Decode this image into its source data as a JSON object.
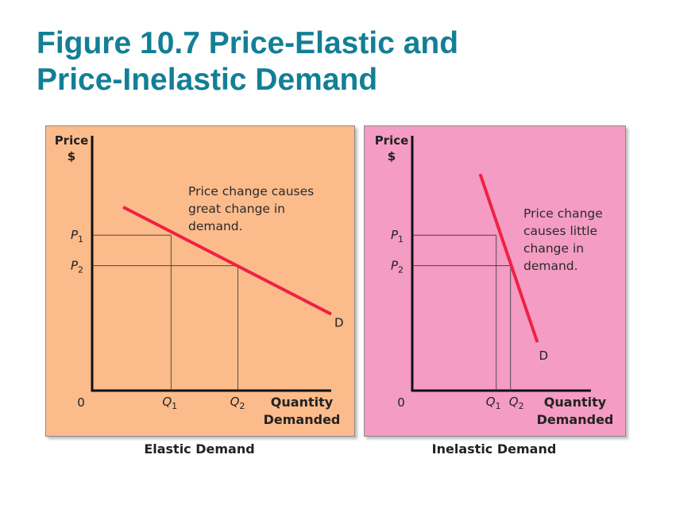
{
  "title": {
    "line1": "Figure 10.7 Price-Elastic and",
    "line2": "Price-Inelastic Demand"
  },
  "colors": {
    "title": "#127f96",
    "elastic_bg": "#fcbb8b",
    "inelastic_bg": "#f49cc3",
    "demand_line": "#ee2244"
  },
  "chart_data": [
    {
      "type": "line",
      "title": "Elastic Demand",
      "ylabel": [
        "Price",
        "$"
      ],
      "xlabel": [
        "Quantity",
        "Demanded"
      ],
      "origin_label": "0",
      "xlim": [
        0,
        100
      ],
      "ylim": [
        0,
        100
      ],
      "series": [
        {
          "name": "D",
          "x": [
            13,
            100
          ],
          "y": [
            72,
            30
          ]
        }
      ],
      "price_levels": [
        {
          "label": "P",
          "sub": "1",
          "value": 61
        },
        {
          "label": "P",
          "sub": "2",
          "value": 49
        }
      ],
      "quantity_levels": [
        {
          "label": "Q",
          "sub": "1",
          "value": 33
        },
        {
          "label": "Q",
          "sub": "2",
          "value": 61
        }
      ],
      "annotation": [
        "Price change causes",
        "great change in",
        "demand."
      ],
      "curve_label": "D"
    },
    {
      "type": "line",
      "title": "Inelastic Demand",
      "ylabel": [
        "Price",
        "$"
      ],
      "xlabel": [
        "Quantity",
        "Demanded"
      ],
      "origin_label": "0",
      "xlim": [
        0,
        100
      ],
      "ylim": [
        0,
        100
      ],
      "series": [
        {
          "name": "D",
          "x": [
            38,
            70
          ],
          "y": [
            85,
            19
          ]
        }
      ],
      "price_levels": [
        {
          "label": "P",
          "sub": "1",
          "value": 61
        },
        {
          "label": "P",
          "sub": "2",
          "value": 49
        }
      ],
      "quantity_levels": [
        {
          "label": "Q",
          "sub": "1",
          "value": 47
        },
        {
          "label": "Q",
          "sub": "2",
          "value": 55
        }
      ],
      "annotation": [
        "Price change",
        "causes little",
        "change in",
        "demand."
      ],
      "curve_label": "D"
    }
  ]
}
